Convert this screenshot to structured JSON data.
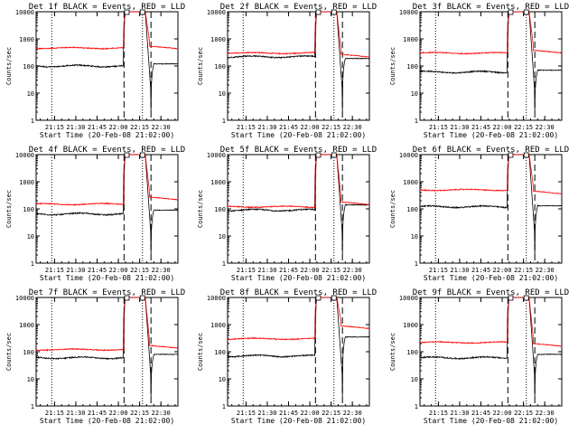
{
  "colors": {
    "events": "#000000",
    "lld": "#ff0000",
    "background": "#ffffff"
  },
  "chart_data": {
    "type": "line",
    "layout": "3x3 grid",
    "yscale": "log",
    "ylim": [
      1,
      10000
    ],
    "y_ticks": [
      1,
      10,
      100,
      1000,
      10000
    ],
    "y_tick_labels": [
      "1",
      "10",
      "100",
      "1000",
      "10000"
    ],
    "ylabel": "Counts/sec",
    "xlim": [
      "21:02",
      "22:42"
    ],
    "x_tick_labels": [
      "21:15",
      "21:30",
      "21:45",
      "22:00",
      "22:15",
      "22:30"
    ],
    "xlabel": "Start Time (20-Feb-08 21:02:00)",
    "marker_lines": {
      "dotted": [
        "21:13",
        "22:17"
      ],
      "dashed": [
        "22:04",
        "22:23"
      ]
    },
    "saturation_boxes": [
      "22:06",
      "22:17"
    ],
    "panels": [
      {
        "title": "Det 1f BLACK = Events, RED = LLD",
        "events_level": 100,
        "lld_level": 460,
        "events_tail": 120,
        "lld_tail": 540
      },
      {
        "title": "Det 2f BLACK = Events, RED = LLD",
        "events_level": 220,
        "lld_level": 300,
        "events_tail": 190,
        "lld_tail": 270
      },
      {
        "title": "Det 3f BLACK = Events, RED = LLD",
        "events_level": 60,
        "lld_level": 300,
        "events_tail": 70,
        "lld_tail": 380
      },
      {
        "title": "Det 4f BLACK = Events, RED = LLD",
        "events_level": 65,
        "lld_level": 150,
        "events_tail": 90,
        "lld_tail": 270
      },
      {
        "title": "Det 5f BLACK = Events, RED = LLD",
        "events_level": 90,
        "lld_level": 120,
        "events_tail": 140,
        "lld_tail": 180
      },
      {
        "title": "Det 6f BLACK = Events, RED = LLD",
        "events_level": 120,
        "lld_level": 500,
        "events_tail": 130,
        "lld_tail": 450
      },
      {
        "title": "Det 7f BLACK = Events, RED = LLD",
        "events_level": 60,
        "lld_level": 120,
        "events_tail": 80,
        "lld_tail": 170
      },
      {
        "title": "Det 8f BLACK = Events, RED = LLD",
        "events_level": 70,
        "lld_level": 300,
        "events_tail": 350,
        "lld_tail": 900
      },
      {
        "title": "Det 9f BLACK = Events, RED = LLD",
        "events_level": 60,
        "lld_level": 220,
        "events_tail": 80,
        "lld_tail": 200
      }
    ]
  }
}
